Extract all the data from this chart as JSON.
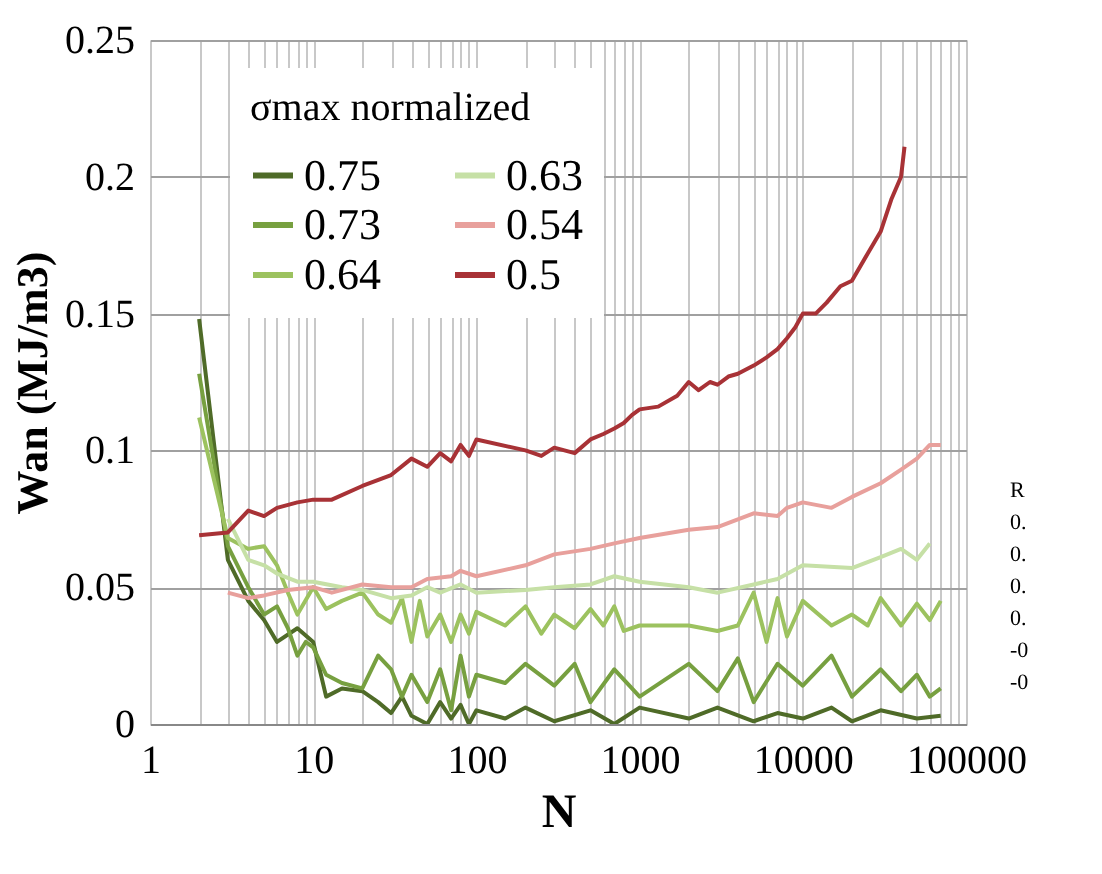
{
  "chart_data": {
    "type": "line",
    "xlabel": "N",
    "ylabel": "Wan (MJ/m3)",
    "legend_title": "σmax normalized",
    "legend": "top",
    "grid": true,
    "log": "x",
    "marker": "none",
    "line_style": "solid",
    "xlim": [
      1,
      100000
    ],
    "ylim": [
      0,
      0.25
    ],
    "xticks": [
      1,
      {
        "value": 2,
        "label": null
      },
      {
        "value": 3,
        "label": null
      },
      {
        "value": 4,
        "label": null
      },
      {
        "value": 5,
        "label": null
      },
      {
        "value": 6,
        "label": null
      },
      {
        "value": 7,
        "label": null
      },
      {
        "value": 8,
        "label": null
      },
      {
        "value": 9,
        "label": null
      },
      10,
      {
        "value": 20,
        "label": null
      },
      {
        "value": 30,
        "label": null
      },
      {
        "value": 40,
        "label": null
      },
      {
        "value": 50,
        "label": null
      },
      {
        "value": 60,
        "label": null
      },
      {
        "value": 70,
        "label": null
      },
      {
        "value": 80,
        "label": null
      },
      {
        "value": 90,
        "label": null
      },
      100,
      {
        "value": 200,
        "label": null
      },
      {
        "value": 300,
        "label": null
      },
      {
        "value": 400,
        "label": null
      },
      {
        "value": 500,
        "label": null
      },
      {
        "value": 600,
        "label": null
      },
      {
        "value": 700,
        "label": null
      },
      {
        "value": 800,
        "label": null
      },
      {
        "value": 900,
        "label": null
      },
      1000,
      {
        "value": 2000,
        "label": null
      },
      {
        "value": 3000,
        "label": null
      },
      {
        "value": 4000,
        "label": null
      },
      {
        "value": 5000,
        "label": null
      },
      {
        "value": 6000,
        "label": null
      },
      {
        "value": 7000,
        "label": null
      },
      {
        "value": 8000,
        "label": null
      },
      {
        "value": 9000,
        "label": null
      },
      10000,
      {
        "value": 20000,
        "label": null
      },
      {
        "value": 30000,
        "label": null
      },
      {
        "value": 40000,
        "label": null
      },
      {
        "value": 50000,
        "label": null
      },
      {
        "value": 60000,
        "label": null
      },
      {
        "value": 70000,
        "label": null
      },
      {
        "value": 80000,
        "label": null
      },
      {
        "value": 90000,
        "label": null
      },
      100000
    ],
    "yticks": [
      0,
      0.05,
      0.1,
      0.15,
      0.2,
      0.25
    ],
    "annotations": [
      "R",
      "0.",
      "0.",
      "0.",
      "0.",
      "-0",
      "-0"
    ],
    "series": [
      {
        "name": "0.75",
        "color": "#4f6b28",
        "x": [
          2,
          3,
          4,
          5,
          6,
          8,
          10,
          12,
          15,
          20,
          25,
          30,
          35,
          40,
          50,
          60,
          70,
          80,
          90,
          100,
          150,
          200,
          300,
          500,
          700,
          1000,
          2000,
          3000,
          5000,
          7000,
          10000,
          15000,
          20000,
          30000,
          50000,
          70000
        ],
        "values": [
          0.148,
          0.06,
          0.045,
          0.038,
          0.03,
          0.035,
          0.03,
          0.01,
          0.013,
          0.012,
          0.008,
          0.004,
          0.01,
          0.003,
          0,
          0.008,
          0.002,
          0.007,
          0,
          0.005,
          0.002,
          0.006,
          0.001,
          0.005,
          0,
          0.006,
          0.002,
          0.006,
          0.001,
          0.004,
          0.002,
          0.006,
          0.001,
          0.005,
          0.002,
          0.003
        ]
      },
      {
        "name": "0.73",
        "color": "#77a040",
        "x": [
          2,
          3,
          4,
          5,
          6,
          7,
          8,
          9,
          10,
          12,
          15,
          20,
          25,
          30,
          35,
          40,
          50,
          60,
          70,
          80,
          90,
          100,
          150,
          200,
          300,
          400,
          500,
          700,
          1000,
          2000,
          3000,
          4000,
          5000,
          7000,
          10000,
          15000,
          20000,
          30000,
          40000,
          50000,
          60000,
          70000
        ],
        "values": [
          0.128,
          0.065,
          0.05,
          0.04,
          0.043,
          0.035,
          0.025,
          0.03,
          0.028,
          0.018,
          0.015,
          0.013,
          0.025,
          0.02,
          0.01,
          0.018,
          0.008,
          0.02,
          0.005,
          0.025,
          0.01,
          0.018,
          0.015,
          0.022,
          0.014,
          0.022,
          0.008,
          0.02,
          0.01,
          0.022,
          0.012,
          0.024,
          0.008,
          0.022,
          0.014,
          0.025,
          0.01,
          0.02,
          0.012,
          0.018,
          0.01,
          0.013
        ]
      },
      {
        "name": "0.64",
        "color": "#9cc25f",
        "x": [
          2,
          3,
          4,
          5,
          6,
          7,
          8,
          10,
          12,
          15,
          20,
          25,
          30,
          35,
          40,
          45,
          50,
          60,
          70,
          80,
          90,
          100,
          150,
          200,
          250,
          300,
          400,
          500,
          600,
          700,
          800,
          1000,
          2000,
          3000,
          4000,
          5000,
          6000,
          7000,
          8000,
          10000,
          15000,
          20000,
          25000,
          30000,
          40000,
          50000,
          60000,
          70000
        ],
        "values": [
          0.112,
          0.068,
          0.064,
          0.065,
          0.058,
          0.048,
          0.04,
          0.05,
          0.042,
          0.045,
          0.048,
          0.04,
          0.037,
          0.046,
          0.03,
          0.045,
          0.032,
          0.04,
          0.03,
          0.04,
          0.033,
          0.041,
          0.036,
          0.043,
          0.033,
          0.04,
          0.035,
          0.042,
          0.036,
          0.043,
          0.034,
          0.036,
          0.036,
          0.034,
          0.036,
          0.048,
          0.03,
          0.046,
          0.032,
          0.045,
          0.036,
          0.04,
          0.036,
          0.046,
          0.036,
          0.044,
          0.038,
          0.045
        ]
      },
      {
        "name": "0.63",
        "color": "#c6e0a6",
        "x": [
          3,
          4,
          5,
          6,
          8,
          10,
          15,
          20,
          30,
          40,
          50,
          60,
          80,
          100,
          200,
          300,
          500,
          700,
          1000,
          2000,
          3000,
          5000,
          7000,
          10000,
          20000,
          30000,
          40000,
          50000,
          60000
        ],
        "values": [
          0.075,
          0.06,
          0.058,
          0.055,
          0.052,
          0.052,
          0.05,
          0.049,
          0.046,
          0.047,
          0.05,
          0.048,
          0.051,
          0.048,
          0.049,
          0.05,
          0.051,
          0.054,
          0.052,
          0.05,
          0.048,
          0.051,
          0.053,
          0.058,
          0.057,
          0.061,
          0.064,
          0.06,
          0.066
        ]
      },
      {
        "name": "0.54",
        "color": "#e8a09c",
        "x": [
          3,
          4,
          5,
          7,
          10,
          13,
          20,
          30,
          40,
          50,
          70,
          80,
          100,
          200,
          300,
          500,
          700,
          1000,
          2000,
          3000,
          5000,
          7000,
          8000,
          10000,
          15000,
          20000,
          30000,
          40000,
          50000,
          60000,
          70000
        ],
        "values": [
          0.048,
          0.046,
          0.047,
          0.049,
          0.05,
          0.048,
          0.051,
          0.05,
          0.05,
          0.053,
          0.054,
          0.056,
          0.054,
          0.058,
          0.062,
          0.064,
          0.066,
          0.068,
          0.071,
          0.072,
          0.077,
          0.076,
          0.079,
          0.081,
          0.079,
          0.083,
          0.088,
          0.093,
          0.097,
          0.102,
          0.102
        ]
      },
      {
        "name": "0.5",
        "color": "#a83236",
        "x": [
          2,
          3,
          4,
          5,
          6,
          8,
          10,
          13,
          20,
          30,
          40,
          50,
          60,
          70,
          80,
          90,
          100,
          200,
          250,
          300,
          400,
          500,
          600,
          700,
          800,
          900,
          1000,
          1300,
          1700,
          2000,
          2300,
          2700,
          3000,
          3500,
          4000,
          5000,
          6000,
          7000,
          8000,
          9000,
          10000,
          12000,
          14000,
          17000,
          20000,
          25000,
          30000,
          35000,
          40000,
          42000
        ],
        "values": [
          0.069,
          0.07,
          0.078,
          0.076,
          0.079,
          0.081,
          0.082,
          0.082,
          0.087,
          0.091,
          0.097,
          0.094,
          0.099,
          0.096,
          0.102,
          0.098,
          0.104,
          0.1,
          0.098,
          0.101,
          0.099,
          0.104,
          0.106,
          0.108,
          0.11,
          0.113,
          0.115,
          0.116,
          0.12,
          0.125,
          0.122,
          0.125,
          0.124,
          0.127,
          0.128,
          0.131,
          0.134,
          0.137,
          0.141,
          0.145,
          0.15,
          0.15,
          0.154,
          0.16,
          0.162,
          0.172,
          0.18,
          0.192,
          0.2,
          0.211
        ]
      }
    ]
  }
}
